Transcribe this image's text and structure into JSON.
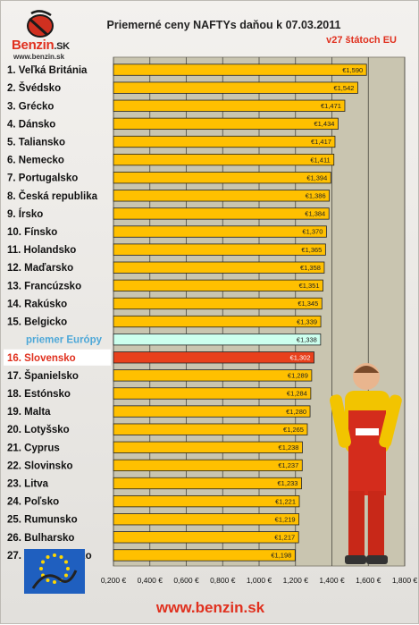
{
  "logo": {
    "brand": "Benzin",
    "suffix": ".SK",
    "url": "www.benzin.sk"
  },
  "footer": {
    "url": "www.benzin.sk"
  },
  "colors": {
    "bar": "#ffc000",
    "bar_europe": "#ccffee",
    "bar_highlight": "#e8401c",
    "plot_bg": "#c9c5b0",
    "accent": "#e0301e",
    "europe_label": "#4ea8d8"
  },
  "chart_data": {
    "type": "bar",
    "orientation": "horizontal",
    "title": "Priemerné ceny NAFTYs daňou k 07.03.2011",
    "subtitle": "v27 štátoch EU",
    "categories": [
      "1. Veľká Británia",
      "2. Švédsko",
      "3. Grécko",
      "4. Dánsko",
      "5. Taliansko",
      "6. Nemecko",
      "7. Portugalsko",
      "8. Česká republika",
      "9. Írsko",
      "10. Fínsko",
      "11. Holandsko",
      "12. Maďarsko",
      "13. Francúzsko",
      "14. Rakúsko",
      "15. Belgicko",
      "priemer Európy",
      "16. Slovensko",
      "17. Španielsko",
      "18. Estónsko",
      "19. Malta",
      "20. Lotyšsko",
      "21. Cyprus",
      "22. Slovinsko",
      "23. Litva",
      "24. Poľsko",
      "25. Rumunsko",
      "26. Bulharsko",
      "27. Luxembursko"
    ],
    "values": [
      1.59,
      1.542,
      1.471,
      1.434,
      1.417,
      1.411,
      1.394,
      1.386,
      1.384,
      1.37,
      1.365,
      1.358,
      1.351,
      1.345,
      1.339,
      1.338,
      1.302,
      1.289,
      1.284,
      1.28,
      1.265,
      1.238,
      1.237,
      1.233,
      1.221,
      1.219,
      1.217,
      1.198
    ],
    "value_labels": [
      "€1,590",
      "€1,542",
      "€1,471",
      "€1,434",
      "€1,417",
      "€1,411",
      "€1,394",
      "€1,386",
      "€1,384",
      "€1,370",
      "€1,365",
      "€1,358",
      "€1,351",
      "€1,345",
      "€1,339",
      "€1,338",
      "€1,302",
      "€1,289",
      "€1,284",
      "€1,280",
      "€1,265",
      "€1,238",
      "€1,237",
      "€1,233",
      "€1,221",
      "€1,219",
      "€1,217",
      "€1,198"
    ],
    "x_ticks": [
      0.2,
      0.4,
      0.6,
      0.8,
      1.0,
      1.2,
      1.4,
      1.6,
      1.8
    ],
    "x_tick_labels": [
      "0,200 €",
      "0,400 €",
      "0,600 €",
      "0,800 €",
      "1,000 €",
      "1,200 €",
      "1,400 €",
      "1,600 €",
      "1,800 €"
    ],
    "xlim": [
      0.2,
      1.8
    ],
    "europe_index": 15,
    "highlight_index": 16,
    "grid": true
  }
}
